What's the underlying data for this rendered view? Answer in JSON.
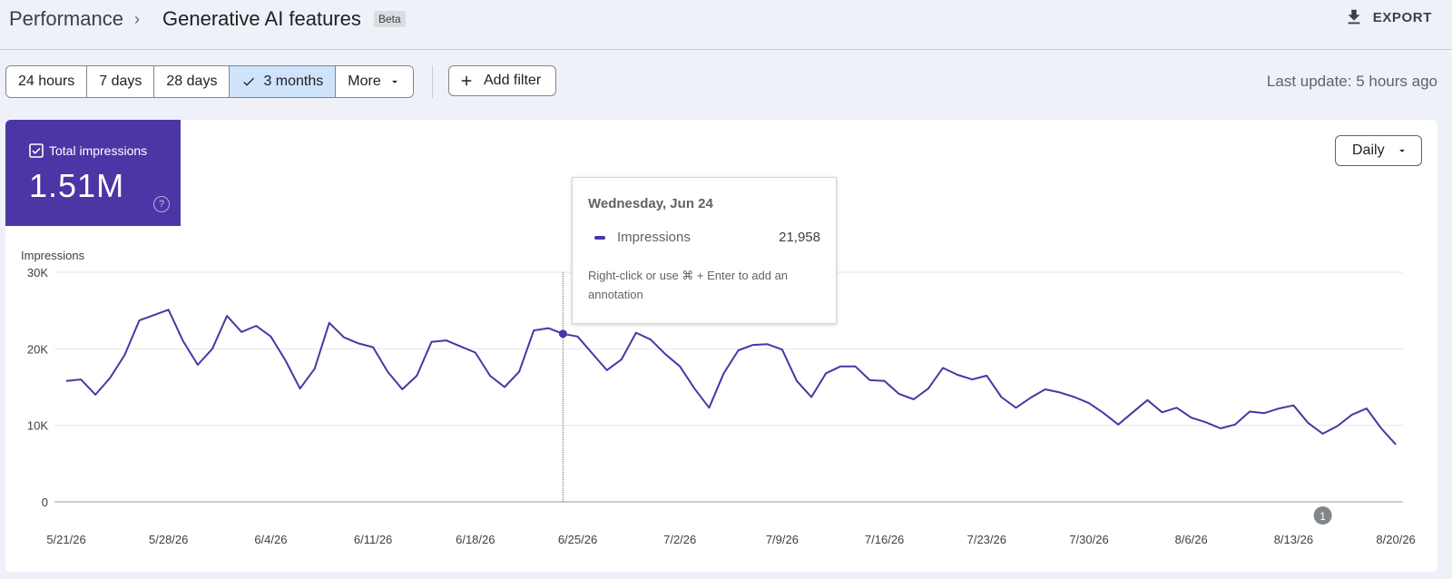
{
  "header": {
    "breadcrumb_root": "Performance",
    "separator": "›",
    "title": "Generative AI features",
    "badge": "Beta",
    "export_label": "EXPORT"
  },
  "toolbar": {
    "ranges": [
      {
        "label": "24 hours",
        "active": false
      },
      {
        "label": "7 days",
        "active": false
      },
      {
        "label": "28 days",
        "active": false
      },
      {
        "label": "3 months",
        "active": true
      },
      {
        "label": "More",
        "active": false
      }
    ],
    "add_filter_label": "Add filter",
    "last_update": "Last update: 5 hours ago"
  },
  "metric": {
    "label": "Total impressions",
    "value": "1.51M",
    "color": "#4c35a4",
    "help_icon": "question-circle-icon"
  },
  "granularity": {
    "selected": "Daily"
  },
  "tooltip": {
    "date": "Wednesday, Jun 24",
    "series": "Impressions",
    "value": "21,958",
    "hint": "Right-click or use ⌘ + Enter to add an annotation"
  },
  "annotation_marker": {
    "label": "1",
    "date": "8/15/26"
  },
  "chart_data": {
    "type": "line",
    "ylabel": "Impressions",
    "ylim": [
      0,
      30000
    ],
    "yticks": [
      {
        "value": 0,
        "label": "0"
      },
      {
        "value": 10000,
        "label": "10K"
      },
      {
        "value": 20000,
        "label": "20K"
      },
      {
        "value": 30000,
        "label": "30K"
      }
    ],
    "xticks": [
      "5/21/26",
      "5/28/26",
      "6/4/26",
      "6/11/26",
      "6/18/26",
      "6/25/26",
      "7/2/26",
      "7/9/26",
      "7/16/26",
      "7/23/26",
      "7/30/26",
      "8/6/26",
      "8/13/26",
      "8/20/26"
    ],
    "start_date": "2026-05-21",
    "highlight_date": "2026-06-24",
    "color": "#4c35a4",
    "grid": true,
    "series": [
      {
        "name": "Impressions",
        "values": [
          15800,
          16000,
          14000,
          16200,
          19200,
          23700,
          24400,
          25100,
          21000,
          17900,
          20000,
          24300,
          22200,
          23000,
          21600,
          18500,
          14800,
          17400,
          23400,
          21500,
          20700,
          20200,
          17000,
          14700,
          16500,
          20900,
          21100,
          20300,
          19500,
          16500,
          15000,
          17000,
          22400,
          22700,
          21958,
          21600,
          19400,
          17200,
          18600,
          22100,
          21200,
          19300,
          17700,
          14800,
          12300,
          16800,
          19800,
          20500,
          20600,
          19900,
          15800,
          13700,
          16800,
          17700,
          17700,
          15900,
          15800,
          14100,
          13400,
          14800,
          17500,
          16600,
          16000,
          16500,
          13700,
          12300,
          13600,
          14700,
          14300,
          13700,
          12900,
          11600,
          10100,
          11700,
          13300,
          11700,
          12300,
          11000,
          10400,
          9600,
          10100,
          11800,
          11600,
          12200,
          12600,
          10300,
          8900,
          9900,
          11400,
          12200,
          9600,
          7500
        ]
      }
    ]
  }
}
